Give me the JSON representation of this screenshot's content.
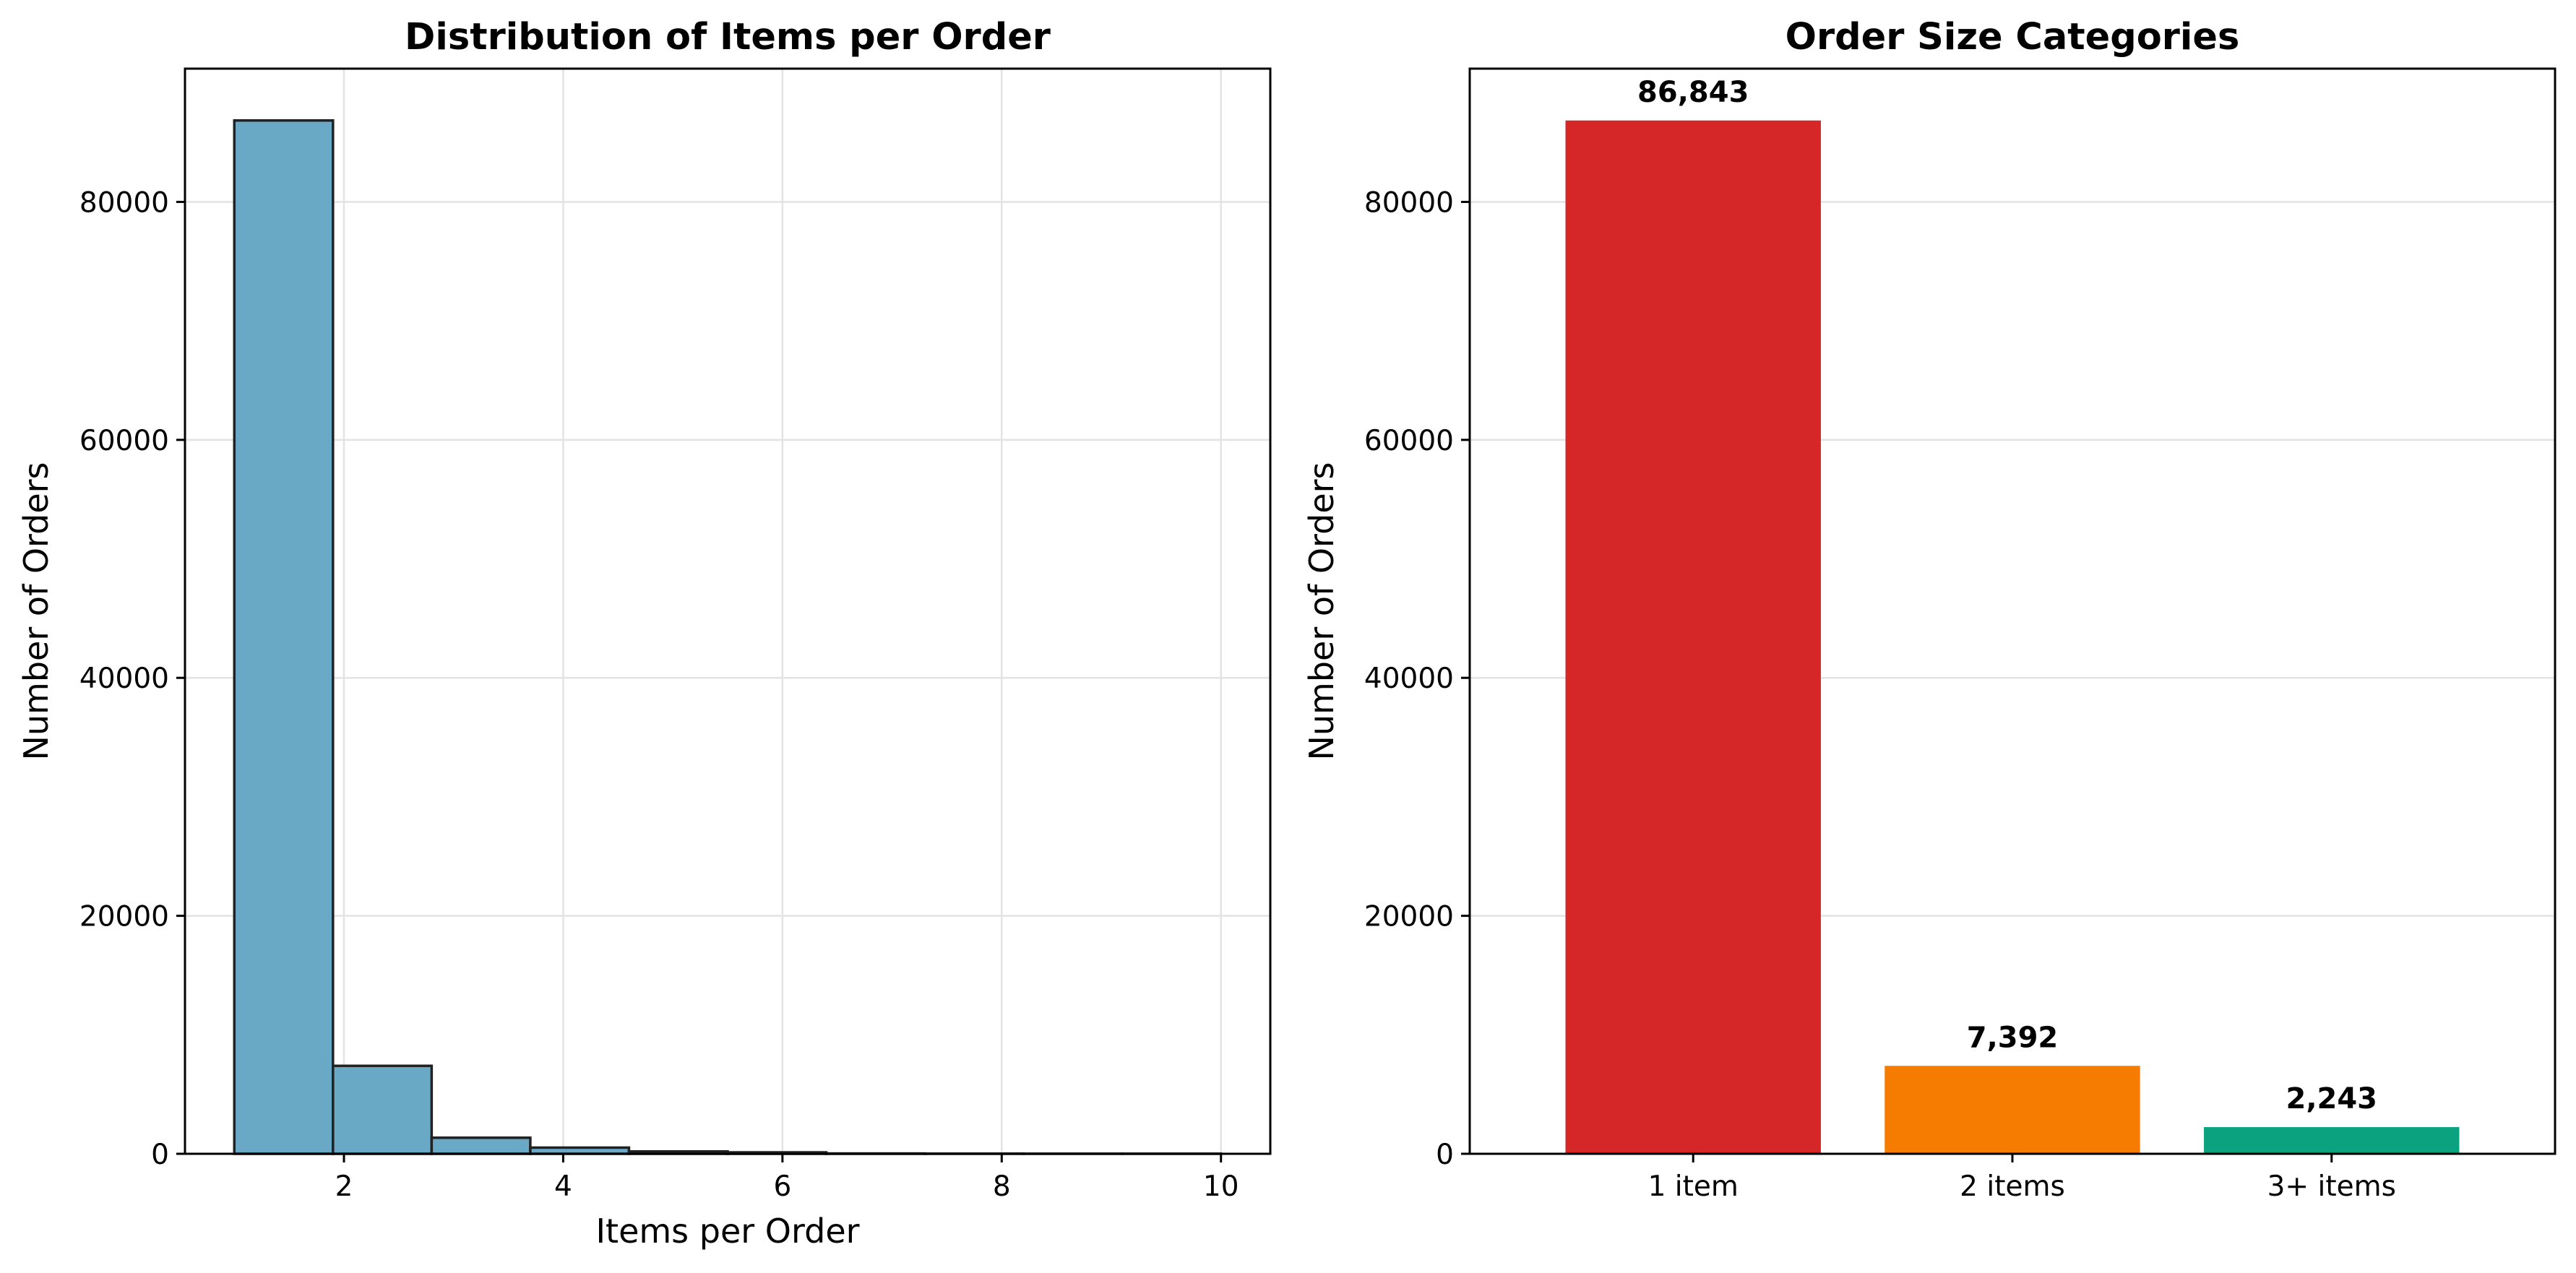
{
  "chart_data": [
    {
      "type": "bar",
      "subtype": "histogram",
      "title": "Distribution of Items per Order",
      "xlabel": "Items per Order",
      "ylabel": "Number of Orders",
      "xlim": [
        0.55,
        10.45
      ],
      "ylim": [
        0,
        91200
      ],
      "xticks": [
        2,
        4,
        6,
        8,
        10
      ],
      "yticks": [
        0,
        20000,
        40000,
        60000,
        80000
      ],
      "bins": [
        {
          "x0": 1.0,
          "x1": 1.9,
          "value": 86843
        },
        {
          "x0": 1.9,
          "x1": 2.8,
          "value": 7392
        },
        {
          "x0": 2.8,
          "x1": 3.7,
          "value": 1350
        },
        {
          "x0": 3.7,
          "x1": 4.6,
          "value": 520
        },
        {
          "x0": 4.6,
          "x1": 5.5,
          "value": 200
        },
        {
          "x0": 5.5,
          "x1": 6.4,
          "value": 120
        },
        {
          "x0": 6.4,
          "x1": 7.3,
          "value": 25
        },
        {
          "x0": 7.3,
          "x1": 8.2,
          "value": 12
        },
        {
          "x0": 8.2,
          "x1": 9.1,
          "value": 8
        },
        {
          "x0": 9.1,
          "x1": 10.0,
          "value": 8
        }
      ],
      "color": "#6aa9c5",
      "edge_color": "#222222",
      "grid": true
    },
    {
      "type": "bar",
      "title": "Order Size Categories",
      "xlabel": "",
      "ylabel": "Number of Orders",
      "ylim": [
        0,
        91200
      ],
      "yticks": [
        0,
        20000,
        40000,
        60000,
        80000
      ],
      "categories": [
        "1 item",
        "2 items",
        "3+ items"
      ],
      "values": [
        86843,
        7392,
        2243
      ],
      "value_labels": [
        "86,843",
        "7,392",
        "2,243"
      ],
      "colors": [
        "#d62728",
        "#f57c00",
        "#0ba37f"
      ],
      "grid": true
    }
  ]
}
